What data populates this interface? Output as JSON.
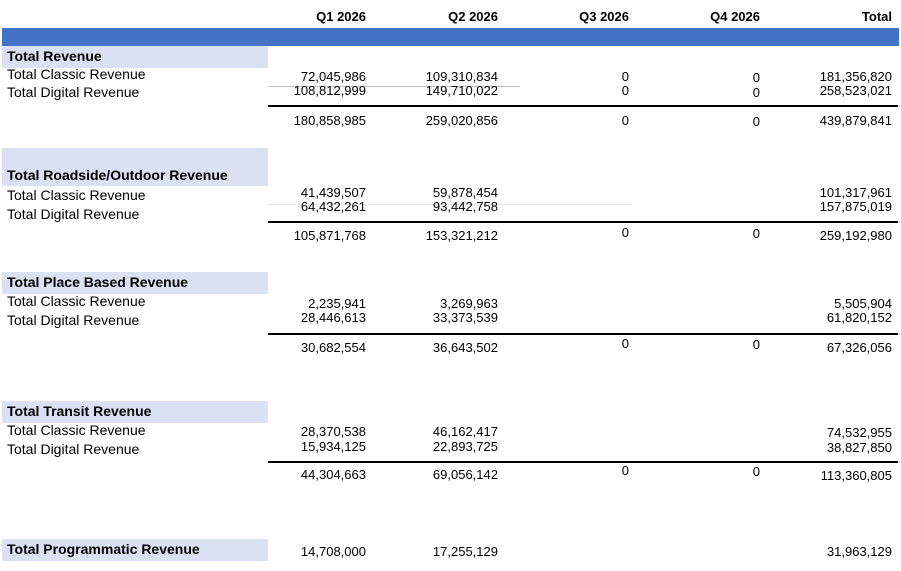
{
  "columns": [
    "Q1 2026",
    "Q2 2026",
    "Q3 2026",
    "Q4 2026",
    "Total"
  ],
  "sections": [
    {
      "title": "Total Revenue",
      "rows": [
        {
          "label": "Total Classic Revenue",
          "values": [
            "72,045,986",
            "109,310,834",
            "0",
            "0",
            "181,356,820"
          ]
        },
        {
          "label": "Total Digital Revenue",
          "values": [
            "108,812,999",
            "149,710,022",
            "0",
            "0",
            "258,523,021"
          ]
        }
      ],
      "totals": [
        "180,858,985",
        "259,020,856",
        "0",
        "0",
        "439,879,841"
      ]
    },
    {
      "title": "Total Roadside/Outdoor Revenue",
      "rows": [
        {
          "label": "Total Classic Revenue",
          "values": [
            "41,439,507",
            "59,878,454",
            "",
            "",
            "101,317,961"
          ]
        },
        {
          "label": "Total Digital Revenue",
          "values": [
            "64,432,261",
            "93,442,758",
            "",
            "",
            "157,875,019"
          ]
        }
      ],
      "totals": [
        "105,871,768",
        "153,321,212",
        "0",
        "0",
        "259,192,980"
      ]
    },
    {
      "title": "Total Place Based Revenue",
      "rows": [
        {
          "label": "Total Classic Revenue",
          "values": [
            "2,235,941",
            "3,269,963",
            "",
            "",
            "5,505,904"
          ]
        },
        {
          "label": "Total Digital Revenue",
          "values": [
            "28,446,613",
            "33,373,539",
            "",
            "",
            "61,820,152"
          ]
        }
      ],
      "totals": [
        "30,682,554",
        "36,643,502",
        "0",
        "0",
        "67,326,056"
      ]
    },
    {
      "title": "Total Transit Revenue",
      "rows": [
        {
          "label": "Total Classic Revenue",
          "values": [
            "28,370,538",
            "46,162,417",
            "",
            "",
            "74,532,955"
          ]
        },
        {
          "label": "Total Digital Revenue",
          "values": [
            "15,934,125",
            "22,893,725",
            "",
            "",
            "38,827,850"
          ]
        }
      ],
      "totals": [
        "44,304,663",
        "69,056,142",
        "0",
        "0",
        "113,360,805"
      ]
    },
    {
      "title": "Total Programmatic Revenue",
      "values": [
        "14,708,000",
        "17,255,129",
        "",
        "",
        "31,963,129"
      ]
    }
  ]
}
